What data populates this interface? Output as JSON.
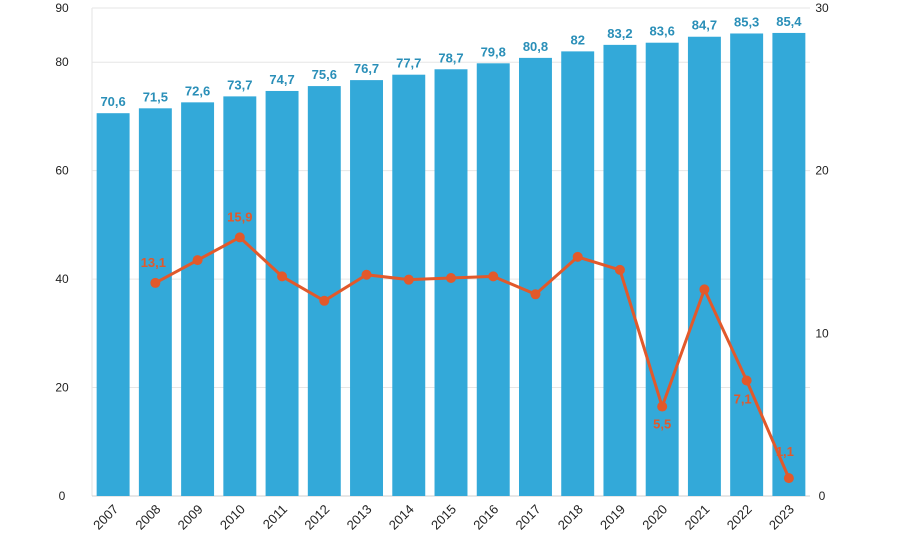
{
  "chart_data": {
    "type": "bar",
    "categories": [
      "2007",
      "2008",
      "2009",
      "2010",
      "2011",
      "2012",
      "2013",
      "2014",
      "2015",
      "2016",
      "2017",
      "2018",
      "2019",
      "2020",
      "2021",
      "2022",
      "2023"
    ],
    "series": [
      {
        "type": "bar",
        "axis": "left",
        "color": "#33a9d9",
        "label_color": "#2a8fb8",
        "values": [
          70.6,
          71.5,
          72.6,
          73.7,
          74.7,
          75.6,
          76.7,
          77.7,
          78.7,
          79.8,
          80.8,
          82,
          83.2,
          83.6,
          84.7,
          85.3,
          85.4
        ],
        "labels": [
          "70,6",
          "71,5",
          "72,6",
          "73,7",
          "74,7",
          "75,6",
          "76,7",
          "77,7",
          "78,7",
          "79,8",
          "80,8",
          "82",
          "83,2",
          "83,6",
          "84,7",
          "85,3",
          "85,4"
        ]
      },
      {
        "type": "line",
        "axis": "right",
        "color": "#e2592b",
        "values": [
          null,
          13.1,
          14.5,
          15.9,
          13.5,
          12.0,
          13.6,
          13.3,
          13.4,
          13.5,
          12.4,
          14.7,
          13.9,
          5.5,
          12.7,
          7.1,
          1.1
        ],
        "labels": [
          null,
          "13,1",
          null,
          "15,9",
          null,
          null,
          null,
          null,
          null,
          null,
          null,
          null,
          null,
          "5,5",
          null,
          "7,1",
          "1,1"
        ]
      }
    ],
    "y_left": {
      "lim": [
        0,
        90
      ],
      "ticks": [
        0,
        20,
        40,
        60,
        80,
        90
      ]
    },
    "y_right": {
      "lim": [
        0,
        30
      ],
      "ticks": [
        0,
        10,
        20,
        30
      ]
    },
    "grid": true,
    "title": "",
    "xlabel": "",
    "ylabel": ""
  }
}
